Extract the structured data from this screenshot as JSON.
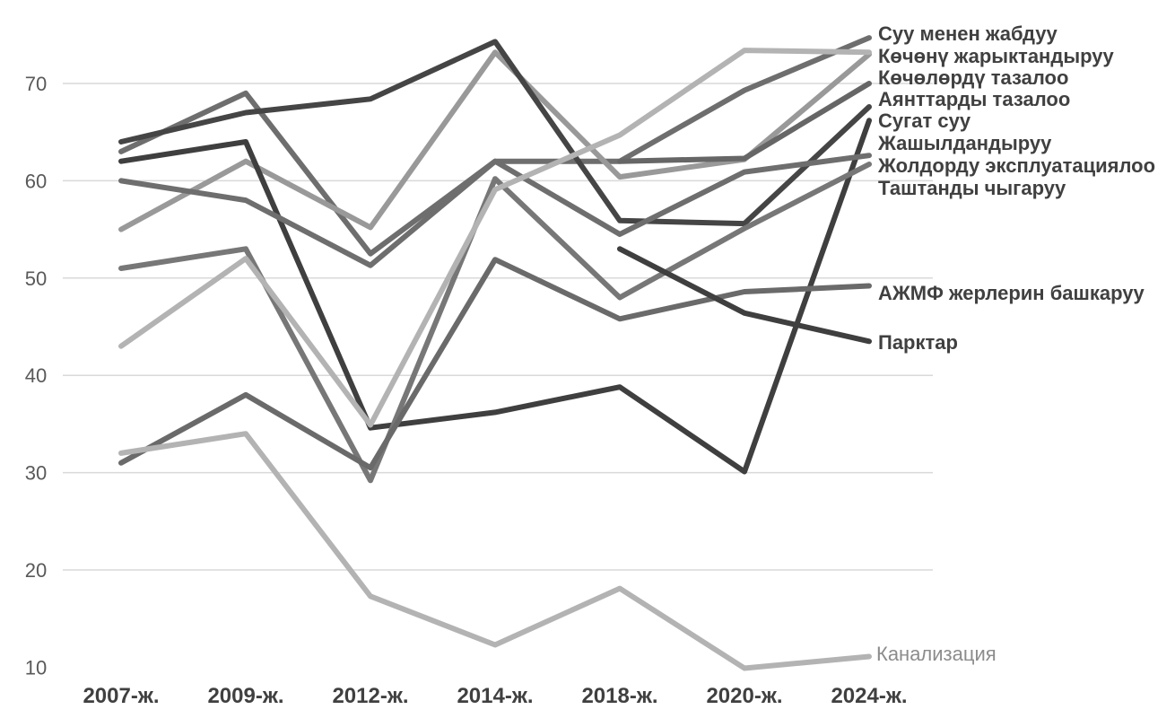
{
  "chart_data": {
    "type": "line",
    "title": "",
    "xlabel": "",
    "ylabel": "",
    "categories": [
      "2007-ж.",
      "2009-ж.",
      "2012-ж.",
      "2014-ж.",
      "2018-ж.",
      "2020-ж.",
      "2024-ж."
    ],
    "ylim": [
      10,
      75
    ],
    "yticks": [
      10,
      20,
      30,
      40,
      50,
      60,
      70
    ],
    "grid": true,
    "legend": "inline labels at right end of each line",
    "series": [
      {
        "name": "Суу менен жабдуу",
        "values": [
          63,
          69,
          52.5,
          62,
          62,
          69.3,
          74.7
        ],
        "color": "#6e6e6e",
        "label_style": "bold"
      },
      {
        "name": "Көчөнү жарыктандыруу",
        "values": [
          55,
          62,
          55.2,
          73.2,
          60.4,
          62.2,
          73
        ],
        "color": "#999999",
        "label_style": "bold"
      },
      {
        "name": "Көчөлөрдү тазалоо",
        "values": [
          null,
          null,
          null,
          null,
          62,
          62.3,
          70
        ],
        "color": "#666666",
        "label_style": "bold"
      },
      {
        "name": "Аянттарды тазалоо",
        "values": [
          64,
          67,
          68.4,
          74.3,
          55.9,
          55.6,
          67.6
        ],
        "color": "#454545",
        "label_style": "bold"
      },
      {
        "name": "Сугат суу",
        "values": [
          62,
          64,
          34.6,
          36.2,
          38.8,
          30.1,
          66.2
        ],
        "color": "#3f3f3f",
        "label_style": "bold"
      },
      {
        "name": "Жашылдандыруу",
        "values": [
          60,
          58,
          51.3,
          62,
          54.5,
          60.9,
          62.6
        ],
        "color": "#6e6e6e",
        "label_style": "bold"
      },
      {
        "name": "Жолдорду эксплуатациялоо",
        "values": [
          51,
          53,
          29.2,
          60.2,
          48,
          55.1,
          61.7
        ],
        "color": "#777777",
        "label_style": "bold"
      },
      {
        "name": "Таштанды чыгаруу",
        "values": [
          43,
          52,
          34.9,
          59.1,
          64.7,
          73.4,
          73.2
        ],
        "color": "#b3b3b3",
        "label_style": "bold"
      },
      {
        "name": "АЖМФ жерлерин башкаруу",
        "values": [
          31,
          38,
          30.5,
          51.9,
          45.8,
          48.6,
          49.2
        ],
        "color": "#6a6a6a",
        "label_style": "bold"
      },
      {
        "name": "Парктар",
        "values": [
          null,
          null,
          null,
          null,
          53,
          46.4,
          43.5
        ],
        "color": "#3f3f3f",
        "label_style": "bold"
      },
      {
        "name": "Канализация",
        "values": [
          32,
          34,
          17.3,
          12.3,
          18.1,
          9.9,
          11.1
        ],
        "color": "#b3b3b3",
        "label_style": "light"
      }
    ]
  }
}
